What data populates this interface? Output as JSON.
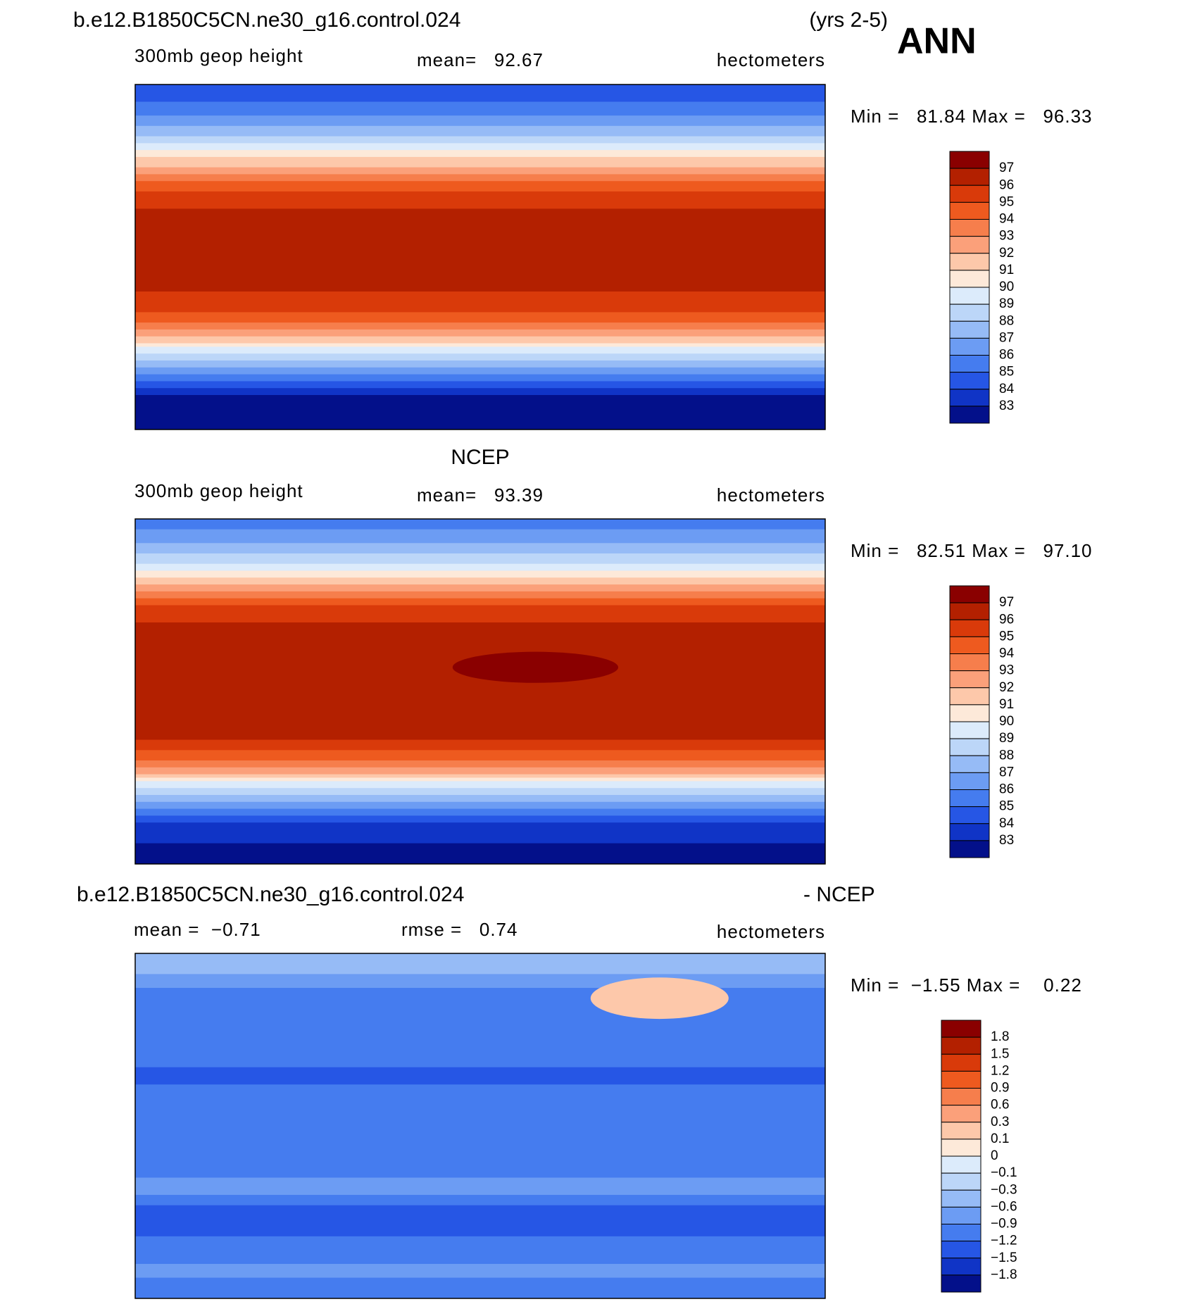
{
  "header": {
    "case": "b.e12.B1850C5CN.ne30_g16.control.024",
    "years": "(yrs 2-5)",
    "season": "ANN"
  },
  "palette": [
    "#8a0000",
    "#b32000",
    "#d93a0a",
    "#ee5a1f",
    "#f67e4c",
    "#fba07a",
    "#fdc8aa",
    "#fde9d9",
    "#dcebfb",
    "#bcd6f8",
    "#96bbf6",
    "#6c9cf3",
    "#457cef",
    "#2656e5",
    "#1034c6",
    "#03108a"
  ],
  "panels": [
    {
      "variable": "300mb geop height",
      "mean": "mean=   92.67",
      "units": "hectometers",
      "min_max": "Min =   81.84 Max =   96.33",
      "levels": [
        97,
        96,
        95,
        94,
        93,
        92,
        91,
        90,
        89,
        88,
        87,
        86,
        85,
        84,
        83
      ]
    },
    {
      "title": "NCEP",
      "variable": "300mb geop height",
      "mean": "mean=   93.39",
      "units": "hectometers",
      "min_max": "Min =   82.51 Max =   97.10",
      "levels": [
        97,
        96,
        95,
        94,
        93,
        92,
        91,
        90,
        89,
        88,
        87,
        86,
        85,
        84,
        83
      ]
    },
    {
      "title_right": "- NCEP",
      "mean": "mean =  −0.71",
      "rmse": "rmse =   0.74",
      "units": "hectometers",
      "min_max": "Min =  −1.55 Max =    0.22",
      "levels": [
        1.8,
        1.5,
        1.2,
        0.9,
        0.6,
        0.3,
        0.1,
        0,
        {
          "value": -0.1,
          "label": "−0.1"
        },
        {
          "value": -0.3,
          "label": "−0.3"
        },
        {
          "value": -0.6,
          "label": "−0.6"
        },
        {
          "value": -0.9,
          "label": "−0.9"
        },
        {
          "value": -1.2,
          "label": "−1.2"
        },
        {
          "value": -1.5,
          "label": "−1.5"
        },
        {
          "value": -1.8,
          "label": "−1.8"
        }
      ]
    }
  ]
}
